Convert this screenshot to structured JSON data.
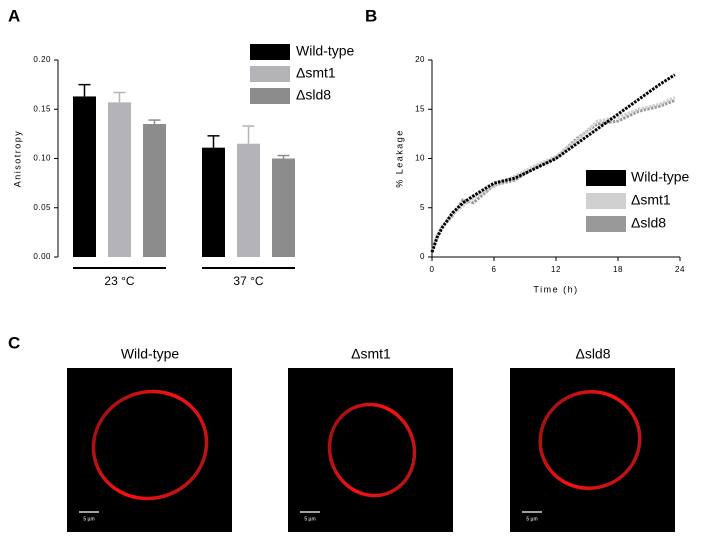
{
  "chart_data": [
    {
      "type": "bar",
      "panel": "A",
      "ylabel": "Anisotropy",
      "categories": [
        "23 °C",
        "37 °C"
      ],
      "ylim": [
        0,
        0.2
      ],
      "yticks": [
        {
          "value": 0,
          "label": "0.00"
        },
        {
          "value": 0.05,
          "label": "0.05"
        },
        {
          "value": 0.1,
          "label": "0.10"
        },
        {
          "value": 0.15,
          "label": "0.15"
        },
        {
          "value": 0.2,
          "label": "0.20"
        }
      ],
      "series": [
        {
          "name": "Wild-type",
          "color": "#000000",
          "values": [
            0.163,
            0.111
          ],
          "errors": [
            0.012,
            0.012
          ]
        },
        {
          "name": "Δsmt1",
          "color": "#b4b4b8",
          "values": [
            0.157,
            0.115
          ],
          "errors": [
            0.01,
            0.018
          ]
        },
        {
          "name": "Δsld8",
          "color": "#8c8c8c",
          "values": [
            0.135,
            0.1
          ],
          "errors": [
            0.004,
            0.003
          ]
        }
      ]
    },
    {
      "type": "line",
      "panel": "B",
      "xlabel": "Time (h)",
      "ylabel": "% Leakage",
      "x": [
        0,
        0.5,
        1,
        2,
        3,
        4,
        6,
        8,
        10,
        12,
        14,
        16,
        18,
        20,
        22,
        23.5
      ],
      "xlim": [
        0,
        24
      ],
      "xticks": [
        0,
        6,
        12,
        18,
        24
      ],
      "ylim": [
        0,
        20
      ],
      "yticks": [
        0,
        5,
        10,
        15,
        20
      ],
      "series": [
        {
          "name": "Wild-type",
          "color": "#000000",
          "values": [
            0.5,
            2.0,
            3.0,
            4.5,
            5.5,
            6.2,
            7.5,
            8.0,
            9.0,
            10.0,
            11.5,
            13.0,
            14.5,
            16.0,
            17.5,
            18.5
          ]
        },
        {
          "name": "Δsmt1",
          "color": "#d0d0d0",
          "values": [
            0.6,
            2.2,
            3.2,
            4.3,
            5.2,
            6.0,
            7.2,
            8.2,
            9.3,
            10.2,
            11.8,
            13.8,
            14.2,
            15.0,
            15.5,
            16.2
          ]
        },
        {
          "name": "Δsld8",
          "color": "#999999",
          "values": [
            0.5,
            2.1,
            3.1,
            4.2,
            5.8,
            5.5,
            7.3,
            7.8,
            9.1,
            10.1,
            12.0,
            13.5,
            13.8,
            14.8,
            15.3,
            15.9
          ]
        }
      ]
    }
  ],
  "micrographs": {
    "panel": "C",
    "images": [
      {
        "label": "Wild-type",
        "scale_bar": "5 µm"
      },
      {
        "label": "Δsmt1",
        "scale_bar": "5 µm"
      },
      {
        "label": "Δsld8",
        "scale_bar": "5 µm"
      }
    ]
  }
}
